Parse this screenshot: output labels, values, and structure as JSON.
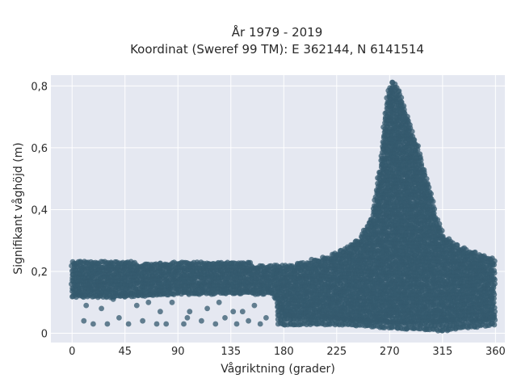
{
  "chart_data": {
    "type": "scatter",
    "title_lines": [
      "År 1979 - 2019",
      "Koordinat (Sweref 99 TM): E 362144, N 6141514"
    ],
    "xlabel": "Vågriktning (grader)",
    "ylabel": "Signifikant våghöjd (m)",
    "xlim": [
      -18,
      368
    ],
    "ylim": [
      -0.03,
      0.835
    ],
    "xticks": [
      0,
      45,
      90,
      135,
      180,
      225,
      270,
      315,
      360
    ],
    "xtick_labels": [
      "0",
      "45",
      "90",
      "135",
      "180",
      "225",
      "270",
      "315",
      "360"
    ],
    "yticks": [
      0,
      0.2,
      0.4,
      0.6,
      0.8
    ],
    "ytick_labels": [
      "0",
      "0,2",
      "0,4",
      "0,6",
      "0,8"
    ],
    "grid": true,
    "marker_color": "#34596e",
    "background_color": "#e5e8f1",
    "upper_envelope": [
      {
        "x": 0,
        "y": 0.24
      },
      {
        "x": 45,
        "y": 0.23
      },
      {
        "x": 90,
        "y": 0.23
      },
      {
        "x": 135,
        "y": 0.23
      },
      {
        "x": 180,
        "y": 0.22
      },
      {
        "x": 200,
        "y": 0.23
      },
      {
        "x": 225,
        "y": 0.26
      },
      {
        "x": 245,
        "y": 0.31
      },
      {
        "x": 255,
        "y": 0.38
      },
      {
        "x": 262,
        "y": 0.55
      },
      {
        "x": 268,
        "y": 0.78
      },
      {
        "x": 272,
        "y": 0.82
      },
      {
        "x": 278,
        "y": 0.79
      },
      {
        "x": 285,
        "y": 0.7
      },
      {
        "x": 292,
        "y": 0.63
      },
      {
        "x": 300,
        "y": 0.52
      },
      {
        "x": 305,
        "y": 0.46
      },
      {
        "x": 310,
        "y": 0.37
      },
      {
        "x": 318,
        "y": 0.31
      },
      {
        "x": 330,
        "y": 0.28
      },
      {
        "x": 345,
        "y": 0.26
      },
      {
        "x": 360,
        "y": 0.24
      }
    ],
    "lower_envelope": [
      {
        "x": 0,
        "y": 0.03
      },
      {
        "x": 20,
        "y": 0.03
      },
      {
        "x": 45,
        "y": 0.03
      },
      {
        "x": 90,
        "y": 0.03
      },
      {
        "x": 135,
        "y": 0.03
      },
      {
        "x": 180,
        "y": 0.03
      },
      {
        "x": 225,
        "y": 0.03
      },
      {
        "x": 270,
        "y": 0.02
      },
      {
        "x": 315,
        "y": 0.01
      },
      {
        "x": 360,
        "y": 0.03
      }
    ],
    "dense_band_bottom": [
      {
        "x": 0,
        "y": 0.12
      },
      {
        "x": 45,
        "y": 0.12
      },
      {
        "x": 90,
        "y": 0.13
      },
      {
        "x": 135,
        "y": 0.13
      },
      {
        "x": 170,
        "y": 0.13
      },
      {
        "x": 180,
        "y": 0.06
      },
      {
        "x": 225,
        "y": 0.05
      },
      {
        "x": 270,
        "y": 0.04
      },
      {
        "x": 315,
        "y": 0.04
      },
      {
        "x": 360,
        "y": 0.05
      }
    ],
    "sparse_points": [
      {
        "x": 10,
        "y": 0.04
      },
      {
        "x": 18,
        "y": 0.03
      },
      {
        "x": 30,
        "y": 0.03
      },
      {
        "x": 40,
        "y": 0.05
      },
      {
        "x": 48,
        "y": 0.03
      },
      {
        "x": 60,
        "y": 0.04
      },
      {
        "x": 72,
        "y": 0.03
      },
      {
        "x": 80,
        "y": 0.03
      },
      {
        "x": 95,
        "y": 0.03
      },
      {
        "x": 100,
        "y": 0.07
      },
      {
        "x": 110,
        "y": 0.04
      },
      {
        "x": 122,
        "y": 0.03
      },
      {
        "x": 130,
        "y": 0.05
      },
      {
        "x": 140,
        "y": 0.03
      },
      {
        "x": 150,
        "y": 0.04
      },
      {
        "x": 160,
        "y": 0.03
      },
      {
        "x": 165,
        "y": 0.05
      },
      {
        "x": 25,
        "y": 0.08
      },
      {
        "x": 55,
        "y": 0.09
      },
      {
        "x": 85,
        "y": 0.1
      },
      {
        "x": 115,
        "y": 0.08
      },
      {
        "x": 145,
        "y": 0.07
      },
      {
        "x": 35,
        "y": 0.11
      },
      {
        "x": 65,
        "y": 0.1
      },
      {
        "x": 125,
        "y": 0.1
      },
      {
        "x": 155,
        "y": 0.09
      },
      {
        "x": 98,
        "y": 0.05
      },
      {
        "x": 137,
        "y": 0.07
      },
      {
        "x": 75,
        "y": 0.07
      },
      {
        "x": 12,
        "y": 0.09
      }
    ]
  }
}
